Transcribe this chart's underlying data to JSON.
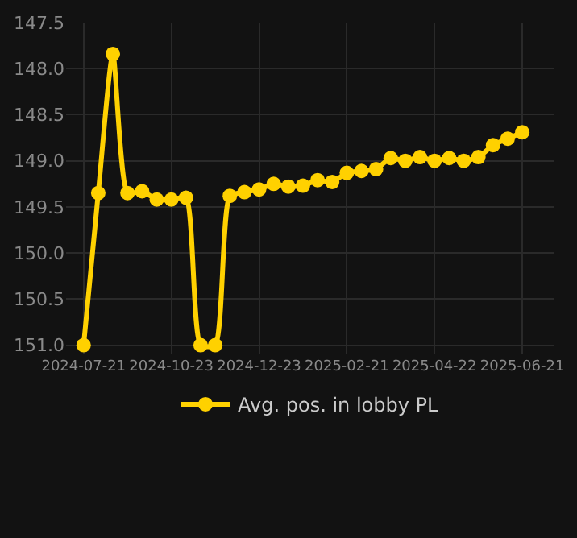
{
  "chart_data": {
    "type": "line",
    "categories": [
      "2024-07-21",
      null,
      null,
      null,
      null,
      null,
      "2024-10-23",
      null,
      null,
      null,
      null,
      null,
      "2024-12-23",
      null,
      null,
      null,
      null,
      null,
      "2025-02-21",
      null,
      null,
      null,
      null,
      null,
      "2025-04-22",
      null,
      null,
      null,
      null,
      null,
      "2025-06-21"
    ],
    "series": [
      {
        "name": "Avg. pos. in lobby PL",
        "color": "#ffd100",
        "values": [
          151.0,
          149.35,
          147.84,
          149.35,
          149.33,
          149.42,
          149.42,
          149.4,
          151.0,
          151.0,
          149.38,
          149.34,
          149.31,
          149.25,
          149.28,
          149.27,
          149.21,
          149.23,
          149.13,
          149.11,
          149.09,
          148.97,
          149.0,
          148.96,
          149.0,
          148.97,
          149.0,
          148.96,
          148.83,
          148.76,
          148.69
        ]
      }
    ],
    "ylim": [
      151.1,
      147.5
    ],
    "yticks": [
      147.5,
      {
        "value": 148,
        "label": "148.0"
      },
      148.5,
      {
        "value": 149,
        "label": "149.0"
      },
      149.5,
      {
        "value": 150,
        "label": "150.0"
      },
      150.5,
      {
        "value": 151,
        "label": "151.0"
      }
    ],
    "grid": true,
    "legend": "bottom",
    "marker": "circle",
    "line_style": "solid"
  }
}
